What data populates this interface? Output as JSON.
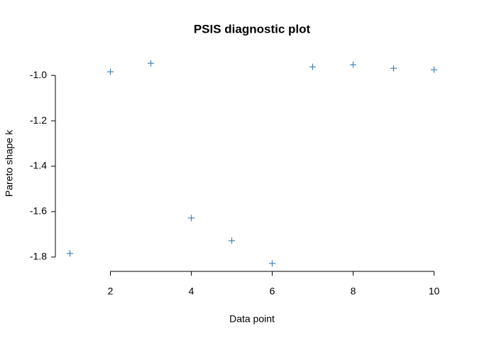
{
  "chart_data": {
    "type": "scatter",
    "title": "PSIS diagnostic plot",
    "x_label": "Data point",
    "y_label": "Pareto shape k",
    "x": [
      1,
      2,
      3,
      4,
      5,
      6,
      7,
      8,
      9,
      10
    ],
    "values": [
      -1.784,
      -0.984,
      -0.947,
      -1.628,
      -1.728,
      -1.828,
      -0.9625,
      -0.953,
      -0.969,
      -0.975
    ],
    "color": "#4682b4",
    "marker": "+",
    "xlim": [
      0.64,
      10.36
    ],
    "xticks": [
      2,
      4,
      6,
      8,
      10
    ],
    "ylim": [
      -1.863,
      -0.912
    ],
    "yticks": [
      -1.8,
      -1.6,
      -1.4,
      -1.2,
      {
        "value": -1,
        "label": "-1.0"
      }
    ]
  }
}
